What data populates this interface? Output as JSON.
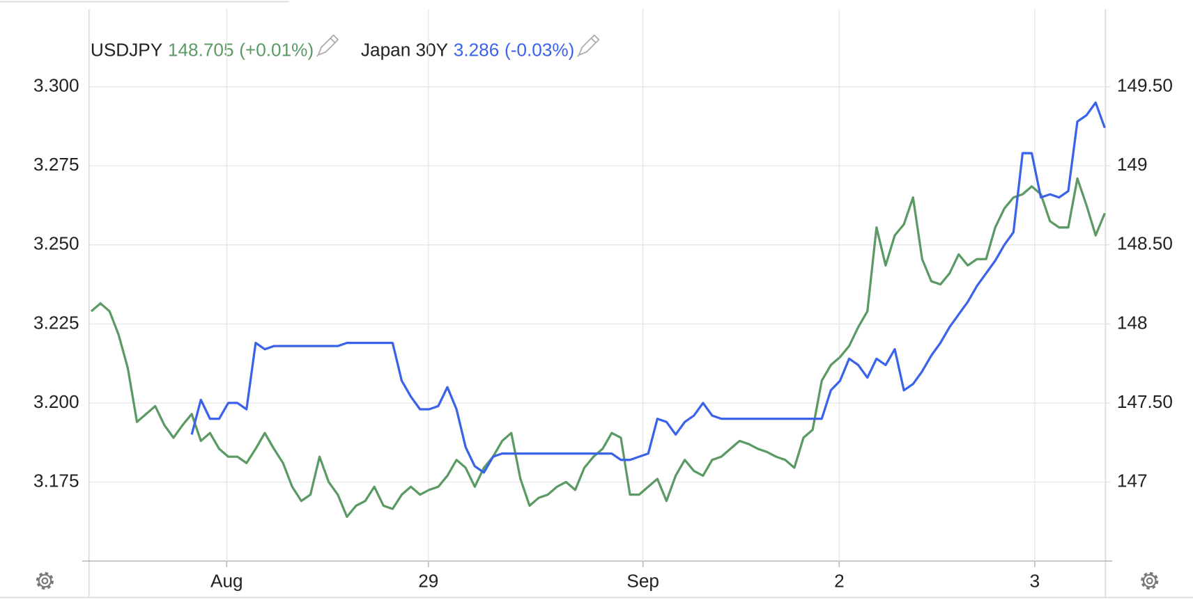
{
  "chart_data": {
    "type": "line",
    "xlim": [
      -0.25,
      111.08
    ],
    "xticks": [
      {
        "value": 14.83,
        "label": "Aug"
      },
      {
        "value": 36.92,
        "label": "29"
      },
      {
        "value": 60.42,
        "label": "Sep"
      },
      {
        "value": 81.92,
        "label": "2"
      },
      {
        "value": 103.33,
        "label": "3"
      }
    ],
    "ylim": [
      3.15,
      3.3245
    ],
    "yticks": [
      3.175,
      {
        "value": 3.2,
        "label": "3.200"
      },
      3.225,
      {
        "value": 3.25,
        "label": "3.250"
      },
      3.275,
      {
        "value": 3.3,
        "label": "3.300"
      }
    ],
    "y2lim": [
      146.5,
      149.99
    ],
    "y2ticks": [
      147,
      {
        "value": 147.5,
        "label": "147.50"
      },
      148,
      {
        "value": 148.5,
        "label": "148.50"
      },
      149,
      {
        "value": 149.5,
        "label": "149.50"
      }
    ],
    "grid": true,
    "series": [
      {
        "name": "USDJPY",
        "price": "148.705",
        "change": "(+0.01%)",
        "color": "#5b9a64",
        "axis": "y2",
        "values": [
          148.08,
          148.13,
          148.08,
          147.93,
          147.72,
          147.38,
          147.43,
          147.48,
          147.36,
          147.28,
          147.36,
          147.43,
          147.26,
          147.31,
          147.21,
          147.16,
          147.16,
          147.12,
          147.21,
          147.31,
          147.21,
          147.12,
          146.97,
          146.88,
          146.92,
          147.16,
          147.0,
          146.92,
          146.78,
          146.85,
          146.88,
          146.97,
          146.85,
          146.83,
          146.92,
          146.97,
          146.92,
          146.95,
          146.97,
          147.04,
          147.14,
          147.09,
          146.97,
          147.09,
          147.16,
          147.26,
          147.31,
          147.02,
          146.85,
          146.9,
          146.92,
          146.97,
          147.0,
          146.95,
          147.09,
          147.16,
          147.21,
          147.31,
          147.28,
          146.92,
          146.92,
          146.97,
          147.02,
          146.88,
          147.04,
          147.14,
          147.07,
          147.04,
          147.14,
          147.16,
          147.21,
          147.26,
          147.24,
          147.21,
          147.19,
          147.16,
          147.14,
          147.09,
          147.28,
          147.33,
          147.64,
          147.74,
          147.79,
          147.86,
          147.98,
          148.08,
          148.61,
          148.37,
          148.56,
          148.63,
          148.8,
          148.41,
          148.27,
          148.25,
          148.32,
          148.44,
          148.37,
          148.41,
          148.41,
          148.61,
          148.73,
          148.8,
          148.82,
          148.87,
          148.82,
          148.65,
          148.61,
          148.61,
          148.92,
          148.75,
          148.56,
          148.7
        ]
      },
      {
        "name": "Japan 30Y",
        "price": "3.286",
        "change": "(-0.03%)",
        "color": "#3b63e9",
        "axis": "y",
        "values": [
          null,
          null,
          null,
          null,
          null,
          null,
          null,
          null,
          null,
          null,
          null,
          3.19,
          3.201,
          3.195,
          3.195,
          3.2,
          3.2,
          3.198,
          3.219,
          3.217,
          3.218,
          3.218,
          3.218,
          3.218,
          3.218,
          3.218,
          3.218,
          3.218,
          3.219,
          3.219,
          3.219,
          3.219,
          3.219,
          3.219,
          3.207,
          3.202,
          3.198,
          3.198,
          3.199,
          3.205,
          3.198,
          3.186,
          3.18,
          3.178,
          3.183,
          3.184,
          3.184,
          3.184,
          3.184,
          3.184,
          3.184,
          3.184,
          3.184,
          3.184,
          3.184,
          3.184,
          3.184,
          3.184,
          3.182,
          3.182,
          3.183,
          3.184,
          3.195,
          3.194,
          3.19,
          3.194,
          3.196,
          3.2,
          3.196,
          3.195,
          3.195,
          3.195,
          3.195,
          3.195,
          3.195,
          3.195,
          3.195,
          3.195,
          3.195,
          3.195,
          3.195,
          3.204,
          3.207,
          3.214,
          3.212,
          3.208,
          3.214,
          3.212,
          3.217,
          3.204,
          3.206,
          3.21,
          3.215,
          3.219,
          3.224,
          3.228,
          3.232,
          3.237,
          3.241,
          3.245,
          3.25,
          3.254,
          3.279,
          3.279,
          3.265,
          3.266,
          3.265,
          3.267,
          3.289,
          3.291,
          3.295,
          3.287,
          null,
          null
        ]
      }
    ]
  }
}
